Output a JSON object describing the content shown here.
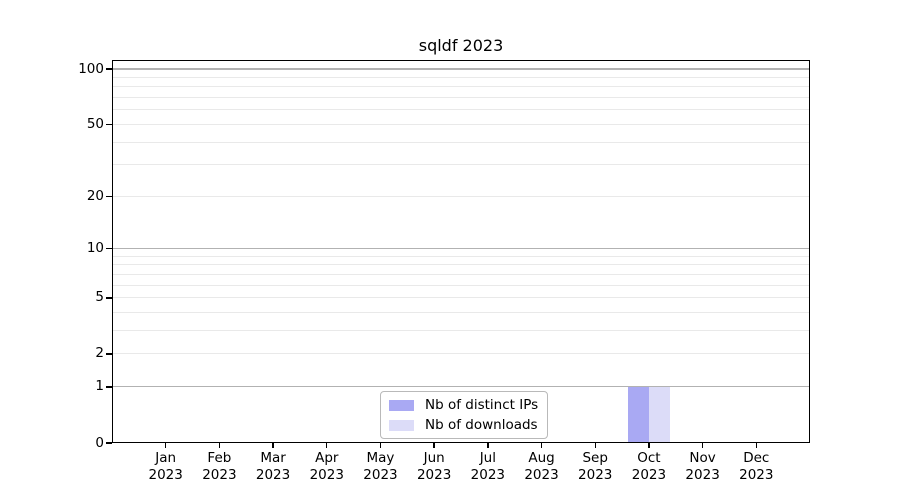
{
  "page": {
    "background": "#ffffff"
  },
  "chart_data": {
    "type": "bar",
    "title": "sqldf 2023",
    "x": {
      "months": [
        "Jan",
        "Feb",
        "Mar",
        "Apr",
        "May",
        "Jun",
        "Jul",
        "Aug",
        "Sep",
        "Oct",
        "Nov",
        "Dec"
      ],
      "year": "2023"
    },
    "series": [
      {
        "name": "Nb of distinct IPs",
        "color": "#a9a9f3",
        "values": [
          0,
          0,
          0,
          0,
          0,
          0,
          0,
          0,
          0,
          1,
          0,
          0
        ]
      },
      {
        "name": "Nb of downloads",
        "color": "#dcdcf8",
        "values": [
          0,
          0,
          0,
          0,
          0,
          0,
          0,
          0,
          0,
          1,
          0,
          0
        ]
      }
    ],
    "yaxis": {
      "scale": "log1p",
      "tick_values": [
        0,
        1,
        2,
        5,
        10,
        20,
        50,
        100
      ],
      "ylim": [
        0,
        112
      ]
    },
    "grid": {
      "major_values": [
        1,
        10,
        100
      ],
      "minor_values": [
        2,
        3,
        4,
        5,
        6,
        7,
        8,
        9,
        20,
        30,
        40,
        50,
        60,
        70,
        80,
        90
      ],
      "major_color": "#b2b2b2",
      "minor_color": "#e9e9e9"
    },
    "legend": {
      "position": "lower center"
    },
    "frame_color": "#000000",
    "text_color": "#000000"
  }
}
